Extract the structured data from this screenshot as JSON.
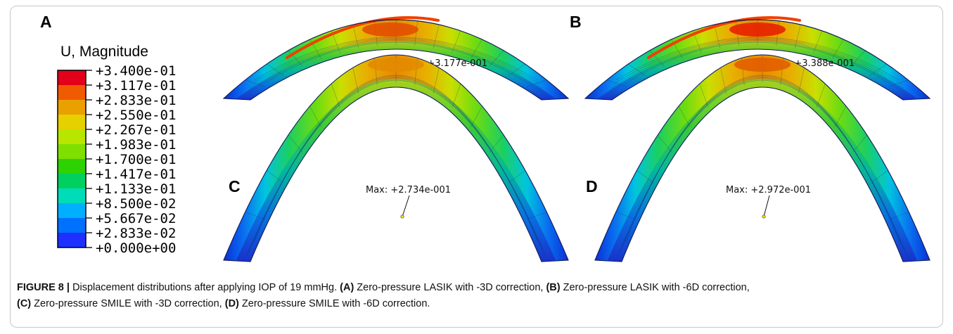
{
  "legend": {
    "title": "U, Magnitude",
    "labels": [
      "+3.400e-01",
      "+3.117e-01",
      "+2.833e-01",
      "+2.550e-01",
      "+2.267e-01",
      "+1.983e-01",
      "+1.700e-01",
      "+1.417e-01",
      "+1.133e-01",
      "+8.500e-02",
      "+5.667e-02",
      "+2.833e-02",
      "+0.000e+00"
    ],
    "colors": [
      "#e3001a",
      "#f05a00",
      "#eaa000",
      "#e6d000",
      "#b8e600",
      "#7fdf00",
      "#2ed200",
      "#00d060",
      "#00dcb8",
      "#00b0ff",
      "#0070ff",
      "#1d30ff"
    ]
  },
  "panels": [
    {
      "letter": "A",
      "max_label": "Max: +3.177e-001"
    },
    {
      "letter": "B",
      "max_label": "Max: +3.388e-001"
    },
    {
      "letter": "C",
      "max_label": "Max: +2.734e-001"
    },
    {
      "letter": "D",
      "max_label": "Max: +2.972e-001"
    }
  ],
  "caption": {
    "figure_label": "FIGURE 8 |",
    "intro": " Displacement distributions after applying IOP of 19 mmHg. ",
    "items": [
      {
        "tag": "(A)",
        "text": " Zero-pressure LASIK with -3D correction, "
      },
      {
        "tag": "(B)",
        "text": " Zero-pressure LASIK with -6D correction, "
      },
      {
        "tag": "(C)",
        "text": " Zero-pressure SMILE with -3D correction, "
      },
      {
        "tag": "(D)",
        "text": " Zero-pressure SMILE with -6D correction."
      }
    ]
  }
}
